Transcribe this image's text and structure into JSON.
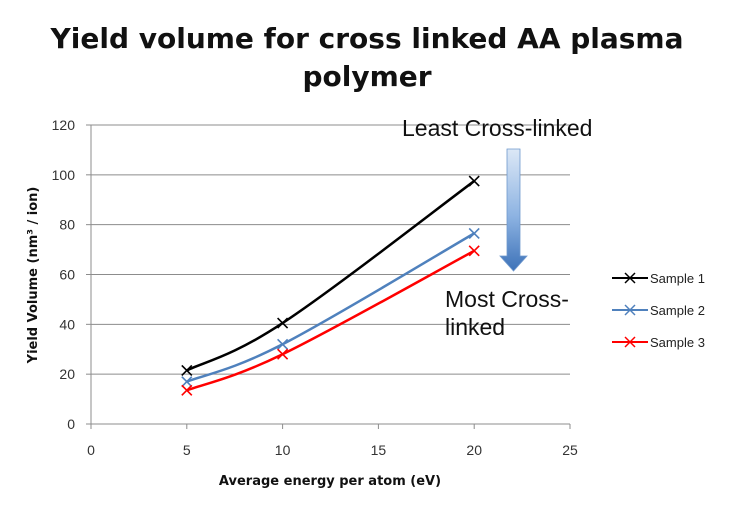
{
  "chart_data": {
    "type": "line",
    "title_lines": [
      "Yield volume for cross linked AA plasma",
      "polymer"
    ],
    "xlabel": "Average energy per atom (eV)",
    "ylabel": "Yield Volume (nm³ / ion)",
    "xlim": [
      0,
      25
    ],
    "ylim": [
      0,
      120
    ],
    "xticks": [
      0,
      5,
      10,
      15,
      20,
      25
    ],
    "yticks": [
      0,
      20,
      40,
      60,
      80,
      100,
      120
    ],
    "grid": "horizontal",
    "legend_position": "right",
    "series": [
      {
        "name": "Sample 1",
        "color": "#000000",
        "x": [
          5,
          10,
          20
        ],
        "y": [
          21.5,
          40.5,
          97.5
        ]
      },
      {
        "name": "Sample 2",
        "color": "#4f81bd",
        "x": [
          5,
          10,
          20
        ],
        "y": [
          17,
          32,
          76.5
        ]
      },
      {
        "name": "Sample 3",
        "color": "#ff0000",
        "x": [
          5,
          10,
          20
        ],
        "y": [
          13.5,
          28,
          69.5
        ]
      }
    ],
    "annotations": {
      "top": "Least Cross-linked",
      "bottom": "Most Cross-linked"
    },
    "arrow_color": "#4f81bd"
  }
}
